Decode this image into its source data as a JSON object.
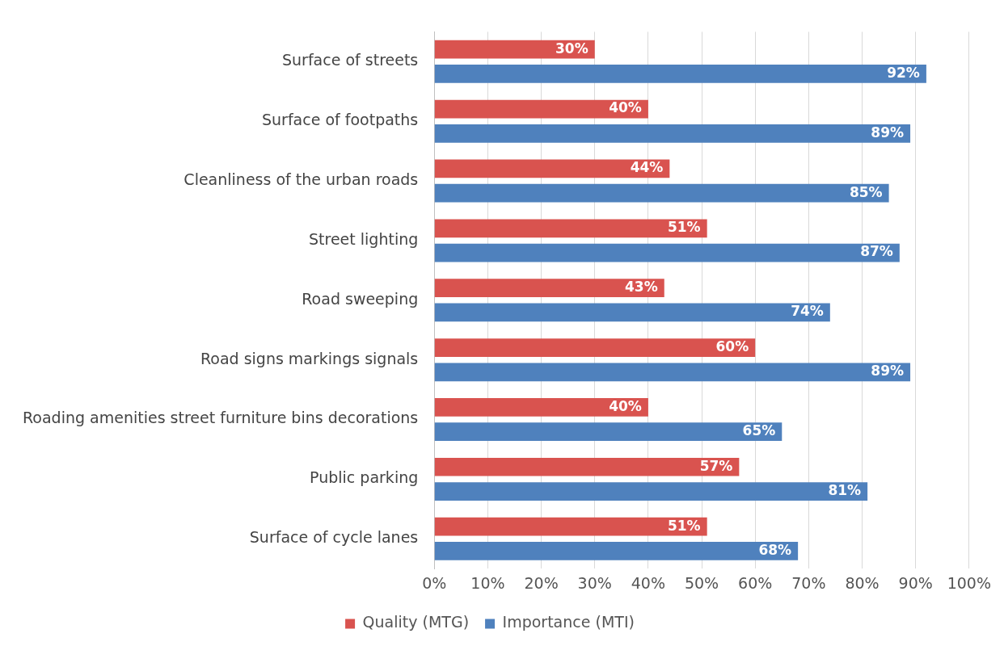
{
  "chart_data": {
    "type": "bar",
    "orientation": "horizontal",
    "categories": [
      "Surface of streets",
      "Surface of footpaths",
      "Cleanliness of the urban roads",
      "Street lighting",
      "Road sweeping",
      "Road signs markings signals",
      "Roading amenities street furniture bins decorations",
      "Public parking",
      "Surface of cycle lanes"
    ],
    "series": [
      {
        "name": "Quality (MTG)",
        "color": "#d9534f",
        "values": [
          30,
          40,
          44,
          51,
          43,
          60,
          40,
          57,
          51
        ],
        "value_labels": [
          "30%",
          "40%",
          "44%",
          "51%",
          "43%",
          "60%",
          "40%",
          "57%",
          "51%"
        ]
      },
      {
        "name": "Importance (MTI)",
        "color": "#4f81bd",
        "values": [
          92,
          89,
          85,
          87,
          74,
          89,
          65,
          81,
          68
        ],
        "value_labels": [
          "92%",
          "89%",
          "85%",
          "87%",
          "74%",
          "89%",
          "65%",
          "81%",
          "68%"
        ]
      }
    ],
    "xlim": [
      0,
      100
    ],
    "xticks": [
      {
        "value": 0,
        "label": "0%"
      },
      {
        "value": 10,
        "label": "10%"
      },
      {
        "value": 20,
        "label": "20%"
      },
      {
        "value": 30,
        "label": "30%"
      },
      {
        "value": 40,
        "label": "40%"
      },
      {
        "value": 50,
        "label": "50%"
      },
      {
        "value": 60,
        "label": "60%"
      },
      {
        "value": 70,
        "label": "70%"
      },
      {
        "value": 80,
        "label": "80%"
      },
      {
        "value": 90,
        "label": "90%"
      },
      {
        "value": 100,
        "label": "100%"
      }
    ],
    "grid": "x",
    "legend": "bottom"
  }
}
